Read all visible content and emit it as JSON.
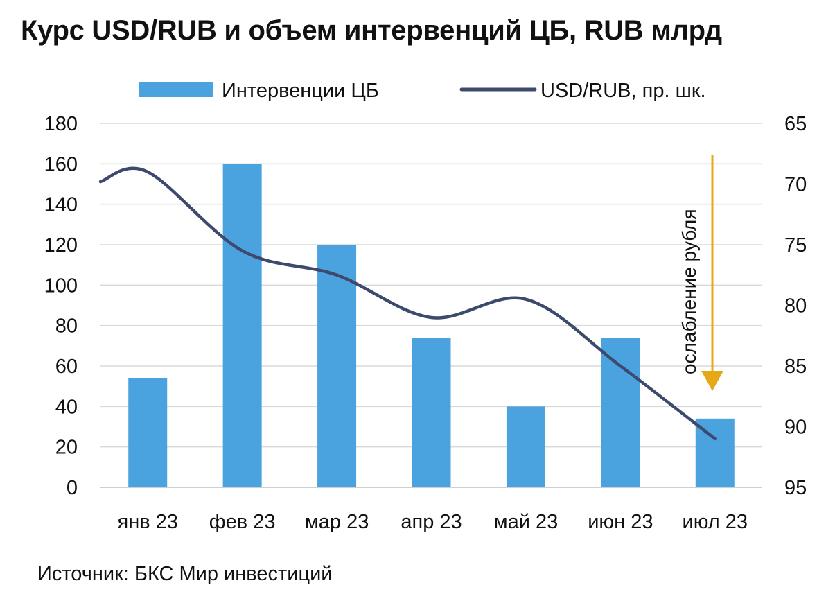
{
  "chart_data": {
    "type": "bar",
    "title": "Курс USD/RUB и объем интервенций ЦБ, RUB млрд",
    "categories": [
      "янв 23",
      "фев 23",
      "мар 23",
      "апр 23",
      "май 23",
      "июн 23",
      "июл 23"
    ],
    "series": [
      {
        "name": "Интервенции ЦБ",
        "type": "bar",
        "axis": "left",
        "color": "#4aa3df",
        "values": [
          54,
          160,
          120,
          74,
          40,
          74,
          34
        ]
      },
      {
        "name": "USD/RUB, пр. шк.",
        "type": "line",
        "axis": "right",
        "color": "#3d4a6e",
        "values": [
          69,
          75.5,
          77.5,
          81,
          79.5,
          85,
          91
        ]
      }
    ],
    "y_left": {
      "min": 0,
      "max": 180,
      "ticks": [
        "0",
        "20",
        "40",
        "60",
        "80",
        "100",
        "120",
        "140",
        "160",
        "180"
      ]
    },
    "y_right": {
      "min": 65,
      "max": 95,
      "inverted": true,
      "ticks": [
        "65",
        "70",
        "75",
        "80",
        "85",
        "90",
        "95"
      ]
    },
    "grid": true,
    "legend_position": "top",
    "annotation": {
      "text": "ослабление рубля",
      "color": "#e6a817"
    },
    "source": "Источник: БКС Мир инвестиций"
  }
}
